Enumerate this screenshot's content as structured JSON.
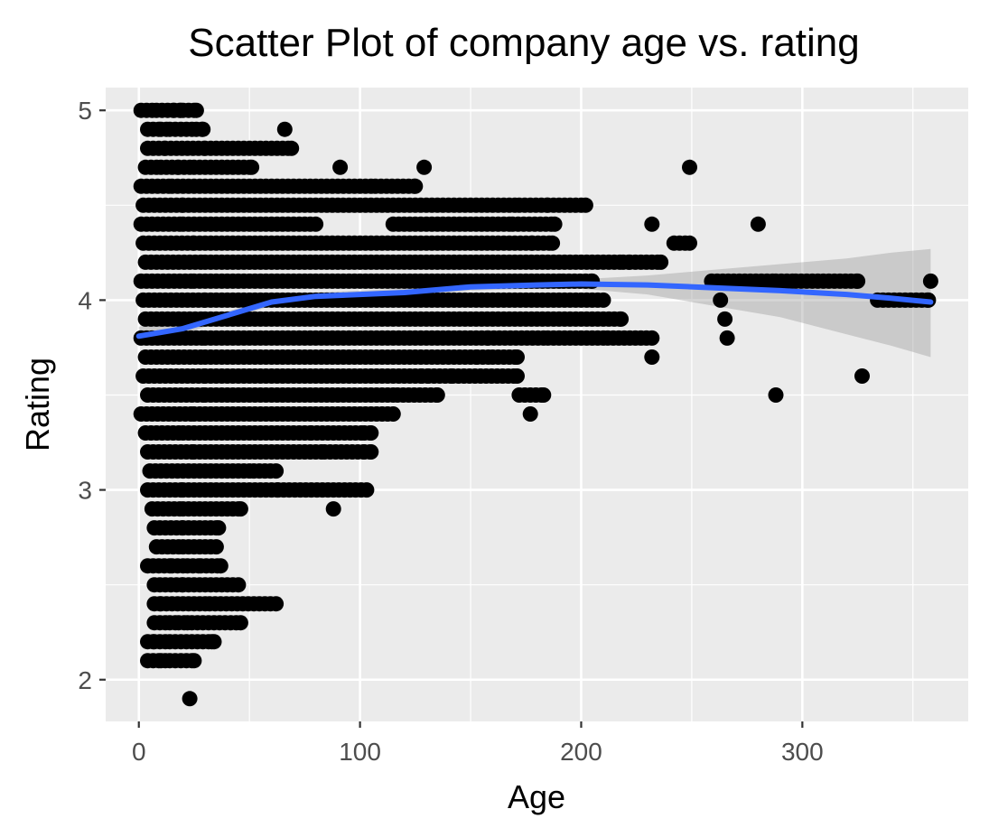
{
  "chart_data": {
    "type": "scatter",
    "title": "Scatter Plot of company age vs. rating",
    "xlabel": "Age",
    "ylabel": "Rating",
    "xlim": [
      -15,
      375
    ],
    "ylim": [
      1.78,
      5.12
    ],
    "x_ticks": [
      0,
      100,
      200,
      300
    ],
    "y_ticks": [
      2,
      3,
      4,
      5
    ],
    "x_tick_labels": [
      "0",
      "100",
      "200",
      "300"
    ],
    "y_tick_labels": [
      "2",
      "3",
      "4",
      "5"
    ],
    "grid": true,
    "legend": "none",
    "colors": {
      "panel_background": "#ebebeb",
      "grid": "#ffffff",
      "points": "#000000",
      "smooth_line": "#3366ff",
      "confidence_band": "#999999"
    },
    "points": [
      [
        1,
        5.0
      ],
      [
        8,
        5.0
      ],
      [
        16,
        5.0
      ],
      [
        19,
        5.0
      ],
      [
        20,
        5.0
      ],
      [
        26,
        5.0
      ],
      [
        4,
        4.9
      ],
      [
        10,
        4.9
      ],
      [
        14,
        4.9
      ],
      [
        26,
        4.9
      ],
      [
        29,
        4.9
      ],
      [
        66,
        4.9
      ],
      [
        4,
        4.8
      ],
      [
        12,
        4.8
      ],
      [
        22,
        4.8
      ],
      [
        30,
        4.8
      ],
      [
        40,
        4.8
      ],
      [
        60,
        4.8
      ],
      [
        69,
        4.8
      ],
      [
        3,
        4.7
      ],
      [
        10,
        4.7
      ],
      [
        18,
        4.7
      ],
      [
        25,
        4.7
      ],
      [
        35,
        4.7
      ],
      [
        45,
        4.7
      ],
      [
        51,
        4.7
      ],
      [
        91,
        4.7
      ],
      [
        129,
        4.7
      ],
      [
        249,
        4.7
      ],
      [
        1,
        4.6
      ],
      [
        15,
        4.6
      ],
      [
        30,
        4.6
      ],
      [
        60,
        4.6
      ],
      [
        75,
        4.6
      ],
      [
        90,
        4.6
      ],
      [
        107,
        4.6
      ],
      [
        125,
        4.6
      ],
      [
        2,
        4.5
      ],
      [
        20,
        4.5
      ],
      [
        50,
        4.5
      ],
      [
        80,
        4.5
      ],
      [
        105,
        4.5
      ],
      [
        120,
        4.5
      ],
      [
        135,
        4.5
      ],
      [
        150,
        4.5
      ],
      [
        172,
        4.5
      ],
      [
        185,
        4.5
      ],
      [
        195,
        4.5
      ],
      [
        202,
        4.5
      ],
      [
        1,
        4.4
      ],
      [
        20,
        4.4
      ],
      [
        50,
        4.4
      ],
      [
        80,
        4.4
      ],
      [
        115,
        4.4
      ],
      [
        140,
        4.4
      ],
      [
        155,
        4.4
      ],
      [
        169,
        4.4
      ],
      [
        188,
        4.4
      ],
      [
        232,
        4.4
      ],
      [
        280,
        4.4
      ],
      [
        2,
        4.3
      ],
      [
        25,
        4.3
      ],
      [
        55,
        4.3
      ],
      [
        85,
        4.3
      ],
      [
        110,
        4.3
      ],
      [
        140,
        4.3
      ],
      [
        160,
        4.3
      ],
      [
        178,
        4.3
      ],
      [
        187,
        4.3
      ],
      [
        242,
        4.3
      ],
      [
        249,
        4.3
      ],
      [
        3,
        4.2
      ],
      [
        30,
        4.2
      ],
      [
        60,
        4.2
      ],
      [
        90,
        4.2
      ],
      [
        120,
        4.2
      ],
      [
        150,
        4.2
      ],
      [
        170,
        4.2
      ],
      [
        180,
        4.2
      ],
      [
        190,
        4.2
      ],
      [
        210,
        4.2
      ],
      [
        219,
        4.2
      ],
      [
        222,
        4.2
      ],
      [
        236,
        4.2
      ],
      [
        1,
        4.1
      ],
      [
        25,
        4.1
      ],
      [
        55,
        4.1
      ],
      [
        85,
        4.1
      ],
      [
        115,
        4.1
      ],
      [
        145,
        4.1
      ],
      [
        170,
        4.1
      ],
      [
        192,
        4.1
      ],
      [
        205,
        4.1
      ],
      [
        259,
        4.1
      ],
      [
        288,
        4.1
      ],
      [
        297,
        4.1
      ],
      [
        325,
        4.1
      ],
      [
        358,
        4.1
      ],
      [
        2,
        4.0
      ],
      [
        30,
        4.0
      ],
      [
        60,
        4.0
      ],
      [
        90,
        4.0
      ],
      [
        120,
        4.0
      ],
      [
        150,
        4.0
      ],
      [
        175,
        4.0
      ],
      [
        195,
        4.0
      ],
      [
        205,
        4.0
      ],
      [
        210,
        4.0
      ],
      [
        263,
        4.0
      ],
      [
        334,
        4.0
      ],
      [
        354,
        4.0
      ],
      [
        357,
        4.0
      ],
      [
        3,
        3.9
      ],
      [
        30,
        3.9
      ],
      [
        60,
        3.9
      ],
      [
        90,
        3.9
      ],
      [
        120,
        3.9
      ],
      [
        150,
        3.9
      ],
      [
        175,
        3.9
      ],
      [
        190,
        3.9
      ],
      [
        218,
        3.9
      ],
      [
        265,
        3.9
      ],
      [
        1,
        3.8
      ],
      [
        30,
        3.8
      ],
      [
        60,
        3.8
      ],
      [
        90,
        3.8
      ],
      [
        120,
        3.8
      ],
      [
        145,
        3.8
      ],
      [
        158,
        3.8
      ],
      [
        168,
        3.8
      ],
      [
        178,
        3.8
      ],
      [
        185,
        3.8
      ],
      [
        190,
        3.8
      ],
      [
        212,
        3.8
      ],
      [
        232,
        3.8
      ],
      [
        266,
        3.8
      ],
      [
        3,
        3.7
      ],
      [
        30,
        3.7
      ],
      [
        60,
        3.7
      ],
      [
        90,
        3.7
      ],
      [
        120,
        3.7
      ],
      [
        145,
        3.7
      ],
      [
        153,
        3.7
      ],
      [
        160,
        3.7
      ],
      [
        171,
        3.7
      ],
      [
        232,
        3.7
      ],
      [
        2,
        3.6
      ],
      [
        30,
        3.6
      ],
      [
        60,
        3.6
      ],
      [
        90,
        3.6
      ],
      [
        115,
        3.6
      ],
      [
        128,
        3.6
      ],
      [
        131,
        3.6
      ],
      [
        142,
        3.6
      ],
      [
        171,
        3.6
      ],
      [
        327,
        3.6
      ],
      [
        4,
        3.5
      ],
      [
        30,
        3.5
      ],
      [
        60,
        3.5
      ],
      [
        75,
        3.5
      ],
      [
        90,
        3.5
      ],
      [
        105,
        3.5
      ],
      [
        117,
        3.5
      ],
      [
        135,
        3.5
      ],
      [
        172,
        3.5
      ],
      [
        183,
        3.5
      ],
      [
        288,
        3.5
      ],
      [
        1,
        3.4
      ],
      [
        25,
        3.4
      ],
      [
        50,
        3.4
      ],
      [
        70,
        3.4
      ],
      [
        85,
        3.4
      ],
      [
        100,
        3.4
      ],
      [
        115,
        3.4
      ],
      [
        177,
        3.4
      ],
      [
        3,
        3.3
      ],
      [
        20,
        3.3
      ],
      [
        40,
        3.3
      ],
      [
        55,
        3.3
      ],
      [
        70,
        3.3
      ],
      [
        78,
        3.3
      ],
      [
        102,
        3.3
      ],
      [
        105,
        3.3
      ],
      [
        4,
        3.2
      ],
      [
        25,
        3.2
      ],
      [
        45,
        3.2
      ],
      [
        60,
        3.2
      ],
      [
        84,
        3.2
      ],
      [
        102,
        3.2
      ],
      [
        105,
        3.2
      ],
      [
        5,
        3.1
      ],
      [
        25,
        3.1
      ],
      [
        40,
        3.1
      ],
      [
        52,
        3.1
      ],
      [
        62,
        3.1
      ],
      [
        4,
        3.0
      ],
      [
        20,
        3.0
      ],
      [
        35,
        3.0
      ],
      [
        63,
        3.0
      ],
      [
        78,
        3.0
      ],
      [
        103,
        3.0
      ],
      [
        6,
        2.9
      ],
      [
        20,
        2.9
      ],
      [
        35,
        2.9
      ],
      [
        46,
        2.9
      ],
      [
        88,
        2.9
      ],
      [
        7,
        2.8
      ],
      [
        20,
        2.8
      ],
      [
        36,
        2.8
      ],
      [
        8,
        2.7
      ],
      [
        20,
        2.7
      ],
      [
        25,
        2.7
      ],
      [
        35,
        2.7
      ],
      [
        4,
        2.6
      ],
      [
        15,
        2.6
      ],
      [
        22,
        2.6
      ],
      [
        28,
        2.6
      ],
      [
        37,
        2.6
      ],
      [
        7,
        2.5
      ],
      [
        12,
        2.5
      ],
      [
        17,
        2.5
      ],
      [
        20,
        2.5
      ],
      [
        45,
        2.5
      ],
      [
        7,
        2.4
      ],
      [
        10,
        2.4
      ],
      [
        32,
        2.4
      ],
      [
        62,
        2.4
      ],
      [
        7,
        2.3
      ],
      [
        14,
        2.3
      ],
      [
        18,
        2.3
      ],
      [
        22,
        2.3
      ],
      [
        24,
        2.3
      ],
      [
        46,
        2.3
      ],
      [
        4,
        2.2
      ],
      [
        7,
        2.2
      ],
      [
        14,
        2.2
      ],
      [
        33,
        2.2
      ],
      [
        34,
        2.2
      ],
      [
        4,
        2.1
      ],
      [
        10,
        2.1
      ],
      [
        12,
        2.1
      ],
      [
        14,
        2.1
      ],
      [
        25,
        2.1
      ],
      [
        23,
        1.9
      ]
    ],
    "smooth_fit": [
      [
        0,
        3.81
      ],
      [
        20,
        3.85
      ],
      [
        40,
        3.92
      ],
      [
        60,
        3.99
      ],
      [
        80,
        4.02
      ],
      [
        100,
        4.03
      ],
      [
        120,
        4.04
      ],
      [
        150,
        4.07
      ],
      [
        180,
        4.08
      ],
      [
        200,
        4.085
      ],
      [
        230,
        4.08
      ],
      [
        260,
        4.065
      ],
      [
        290,
        4.05
      ],
      [
        320,
        4.03
      ],
      [
        340,
        4.01
      ],
      [
        358,
        3.99
      ]
    ],
    "confidence_band": {
      "x": [
        0,
        20,
        40,
        60,
        80,
        100,
        120,
        150,
        180,
        200,
        230,
        260,
        290,
        320,
        340,
        358
      ],
      "lower": [
        3.76,
        3.82,
        3.9,
        3.97,
        4.0,
        4.01,
        4.02,
        4.05,
        4.06,
        4.06,
        4.03,
        3.97,
        3.91,
        3.82,
        3.76,
        3.7
      ],
      "upper": [
        3.86,
        3.88,
        3.94,
        4.01,
        4.04,
        4.05,
        4.06,
        4.09,
        4.1,
        4.11,
        4.13,
        4.16,
        4.19,
        4.22,
        4.25,
        4.27
      ]
    }
  }
}
